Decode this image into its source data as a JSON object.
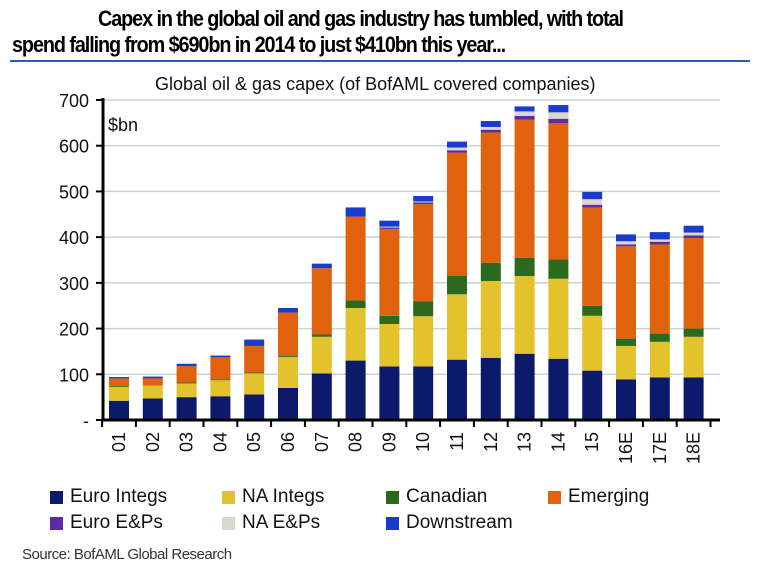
{
  "headline": {
    "line1": "Capex in the global oil and gas industry has tumbled, with total",
    "line2": "spend falling from $690bn in 2014 to just $410bn this year..."
  },
  "source": "Source: BofAML Global Research",
  "chart_data": {
    "type": "bar",
    "stacked": true,
    "title": "Global oil & gas capex (of BofAML covered companies)",
    "unit_label": "$bn",
    "xlabel": "",
    "ylabel": "$bn",
    "ylim": [
      0,
      700
    ],
    "yticks": [
      0,
      100,
      200,
      300,
      400,
      500,
      600,
      700
    ],
    "ytick_labels": [
      "-",
      "100",
      "200",
      "300",
      "400",
      "500",
      "600",
      "700"
    ],
    "grid": true,
    "legend_position": "bottom",
    "categories": [
      "01",
      "02",
      "03",
      "04",
      "05",
      "06",
      "07",
      "08",
      "09",
      "10",
      "11",
      "12",
      "13",
      "14",
      "15",
      "16E",
      "17E",
      "18E"
    ],
    "series": [
      {
        "name": "Euro Integs",
        "color": "#0b1a6b",
        "values": [
          42,
          47,
          50,
          52,
          56,
          70,
          102,
          130,
          117,
          117,
          132,
          136,
          145,
          134,
          108,
          89,
          93,
          93
        ]
      },
      {
        "name": "NA Integs",
        "color": "#e4c22c",
        "values": [
          30,
          28,
          30,
          35,
          46,
          68,
          80,
          115,
          93,
          110,
          143,
          168,
          170,
          175,
          120,
          73,
          78,
          89
        ]
      },
      {
        "name": "Canadian",
        "color": "#2b6a1c",
        "values": [
          2,
          1,
          2,
          2,
          2,
          2,
          5,
          17,
          18,
          33,
          40,
          40,
          40,
          42,
          22,
          16,
          18,
          18
        ]
      },
      {
        "name": "Emerging",
        "color": "#e0620c",
        "values": [
          17,
          15,
          36,
          48,
          58,
          95,
          145,
          183,
          190,
          212,
          270,
          285,
          302,
          298,
          215,
          202,
          195,
          198
        ]
      },
      {
        "name": "Euro E&Ps",
        "color": "#5b2ca3",
        "values": [
          0,
          2,
          0,
          0,
          0,
          0,
          0,
          0,
          3,
          4,
          5,
          6,
          8,
          10,
          6,
          4,
          6,
          6
        ]
      },
      {
        "name": "NA E&Ps",
        "color": "#d9d8cc",
        "values": [
          0,
          0,
          0,
          0,
          0,
          0,
          0,
          0,
          2,
          2,
          6,
          6,
          10,
          14,
          12,
          7,
          5,
          6
        ]
      },
      {
        "name": "Downstream",
        "color": "#1b3bcc",
        "values": [
          3,
          2,
          5,
          4,
          14,
          10,
          10,
          20,
          13,
          12,
          13,
          13,
          11,
          16,
          16,
          15,
          16,
          15
        ]
      }
    ]
  }
}
